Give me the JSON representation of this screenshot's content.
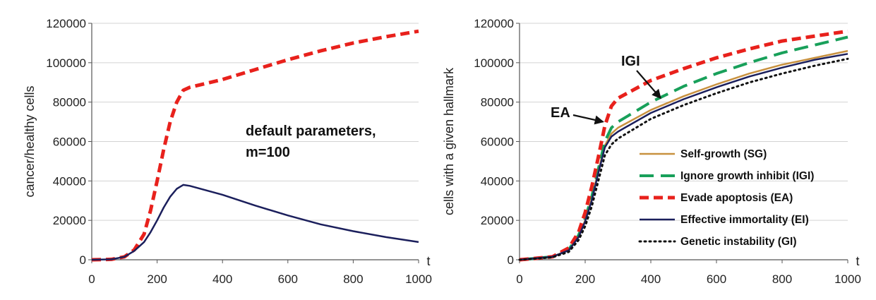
{
  "chart_data": [
    {
      "type": "line",
      "xlabel": "t",
      "ylabel": "cancer/healthy cells",
      "xlim": [
        0,
        1000
      ],
      "ylim": [
        0,
        120000
      ],
      "x_ticks": [
        "0",
        "200",
        "400",
        "600",
        "800",
        "1000"
      ],
      "y_ticks": [
        "0",
        "20000",
        "40000",
        "60000",
        "80000",
        "100000",
        "120000"
      ],
      "grid": "horizontal",
      "annotation": [
        "default parameters,",
        "m=100"
      ],
      "series": [
        {
          "color": "#e8211c",
          "dash": "dashed",
          "points": [
            [
              0,
              0
            ],
            [
              60,
              200
            ],
            [
              100,
              1500
            ],
            [
              130,
              5000
            ],
            [
              160,
              13000
            ],
            [
              180,
              25000
            ],
            [
              200,
              40000
            ],
            [
              220,
              56000
            ],
            [
              240,
              70000
            ],
            [
              260,
              80000
            ],
            [
              280,
              86000
            ],
            [
              300,
              87500
            ],
            [
              400,
              91500
            ],
            [
              500,
              96500
            ],
            [
              600,
              101500
            ],
            [
              700,
              106000
            ],
            [
              800,
              110000
            ],
            [
              900,
              113200
            ],
            [
              1000,
              116000
            ]
          ]
        },
        {
          "color": "#1b1f5c",
          "dash": "solid",
          "points": [
            [
              0,
              0
            ],
            [
              60,
              200
            ],
            [
              100,
              1500
            ],
            [
              130,
              4500
            ],
            [
              160,
              9000
            ],
            [
              180,
              14000
            ],
            [
              200,
              20000
            ],
            [
              220,
              26500
            ],
            [
              240,
              32000
            ],
            [
              260,
              36000
            ],
            [
              280,
              38000
            ],
            [
              300,
              37500
            ],
            [
              400,
              33000
            ],
            [
              500,
              27500
            ],
            [
              600,
              22500
            ],
            [
              700,
              18000
            ],
            [
              800,
              14500
            ],
            [
              900,
              11500
            ],
            [
              1000,
              9000
            ]
          ]
        }
      ]
    },
    {
      "type": "line",
      "xlabel": "t",
      "ylabel": "cells with a given hallmark",
      "xlim": [
        0,
        1000
      ],
      "ylim": [
        0,
        120000
      ],
      "x_ticks": [
        "0",
        "200",
        "400",
        "600",
        "800",
        "1000"
      ],
      "y_ticks": [
        "0",
        "20000",
        "40000",
        "60000",
        "80000",
        "100000",
        "120000"
      ],
      "grid": "horizontal",
      "legend_position": "bottom-right",
      "annotations": [
        {
          "text": "IGI",
          "arrow_to": [
            430,
            82000
          ]
        },
        {
          "text": "EA",
          "arrow_to": [
            255,
            70000
          ]
        }
      ],
      "series": [
        {
          "name": "Self-growth (SG)",
          "color": "#c8913f",
          "dash": "solid",
          "points": [
            [
              0,
              0
            ],
            [
              100,
              1500
            ],
            [
              150,
              5000
            ],
            [
              180,
              12000
            ],
            [
              200,
              20000
            ],
            [
              220,
              31000
            ],
            [
              240,
              45000
            ],
            [
              260,
              58000
            ],
            [
              280,
              64000
            ],
            [
              300,
              67000
            ],
            [
              400,
              76000
            ],
            [
              500,
              83000
            ],
            [
              600,
              89000
            ],
            [
              700,
              94500
            ],
            [
              800,
              99000
            ],
            [
              900,
              102500
            ],
            [
              1000,
              106000
            ]
          ]
        },
        {
          "name": "Ignore growth inhibit (IGI)",
          "color": "#18a05a",
          "dash": "longdash",
          "points": [
            [
              0,
              0
            ],
            [
              100,
              1500
            ],
            [
              150,
              5200
            ],
            [
              180,
              12500
            ],
            [
              200,
              21000
            ],
            [
              220,
              32000
            ],
            [
              240,
              46000
            ],
            [
              260,
              60000
            ],
            [
              280,
              67000
            ],
            [
              300,
              70000
            ],
            [
              400,
              80000
            ],
            [
              500,
              88000
            ],
            [
              600,
              94500
            ],
            [
              700,
              100000
            ],
            [
              800,
              105000
            ],
            [
              900,
              109000
            ],
            [
              1000,
              113000
            ]
          ]
        },
        {
          "name": "Evade apoptosis (EA)",
          "color": "#e8211c",
          "dash": "dashed",
          "points": [
            [
              0,
              0
            ],
            [
              100,
              1500
            ],
            [
              150,
              6000
            ],
            [
              180,
              14000
            ],
            [
              200,
              24000
            ],
            [
              220,
              37000
            ],
            [
              240,
              52000
            ],
            [
              260,
              68000
            ],
            [
              280,
              78000
            ],
            [
              300,
              82000
            ],
            [
              400,
              91000
            ],
            [
              500,
              97000
            ],
            [
              600,
              102500
            ],
            [
              700,
              107000
            ],
            [
              800,
              111000
            ],
            [
              900,
              113500
            ],
            [
              1000,
              116000
            ]
          ]
        },
        {
          "name": "Effective immortality (EI)",
          "color": "#1b1f5c",
          "dash": "solid",
          "points": [
            [
              0,
              0
            ],
            [
              100,
              1500
            ],
            [
              150,
              4800
            ],
            [
              180,
              11500
            ],
            [
              200,
              19500
            ],
            [
              220,
              30000
            ],
            [
              240,
              44000
            ],
            [
              260,
              57000
            ],
            [
              280,
              62500
            ],
            [
              300,
              65000
            ],
            [
              400,
              74500
            ],
            [
              500,
              81500
            ],
            [
              600,
              87500
            ],
            [
              700,
              93000
            ],
            [
              800,
              97500
            ],
            [
              900,
              101500
            ],
            [
              1000,
              104500
            ]
          ]
        },
        {
          "name": "Genetic instability (GI)",
          "color": "#111111",
          "dash": "dotted",
          "points": [
            [
              0,
              0
            ],
            [
              100,
              1200
            ],
            [
              150,
              4000
            ],
            [
              180,
              10000
            ],
            [
              200,
              17000
            ],
            [
              220,
              27000
            ],
            [
              240,
              40000
            ],
            [
              260,
              53000
            ],
            [
              280,
              58500
            ],
            [
              300,
              61500
            ],
            [
              400,
              71500
            ],
            [
              500,
              78500
            ],
            [
              600,
              84500
            ],
            [
              700,
              90000
            ],
            [
              800,
              94500
            ],
            [
              900,
              98500
            ],
            [
              1000,
              102000
            ]
          ]
        }
      ]
    }
  ]
}
